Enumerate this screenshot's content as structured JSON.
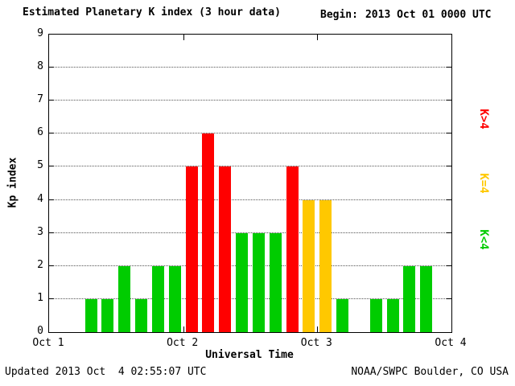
{
  "title": "Estimated Planetary K index (3 hour data)",
  "begin": {
    "label": "Begin:",
    "value": "2013 Oct 01 0000 UTC"
  },
  "footer": {
    "updated": "Updated 2013 Oct  4 02:55:07 UTC",
    "source": "NOAA/SWPC Boulder, CO USA"
  },
  "chart_data": {
    "type": "bar",
    "title": "Estimated Planetary K index (3 hour data)",
    "xlabel": "Universal Time",
    "ylabel": "Kp index",
    "ylim": [
      0,
      9
    ],
    "y_ticks": [
      0,
      1,
      2,
      3,
      4,
      5,
      6,
      7,
      8,
      9
    ],
    "x_tick_labels": [
      "Oct 1",
      "Oct 2",
      "Oct 3",
      "Oct 4"
    ],
    "bars_per_day": 8,
    "bar_interval_hours": 3,
    "values": [
      null,
      null,
      1,
      1,
      2,
      1,
      2,
      2,
      5,
      6,
      5,
      3,
      3,
      3,
      5,
      4,
      4,
      1,
      null,
      1,
      1,
      2,
      2,
      null
    ],
    "colors": {
      "kp_below_4": "#00cc00",
      "kp_equal_4": "#ffc800",
      "kp_above_4": "#ff0000"
    },
    "legend": [
      {
        "label": "K>4",
        "color": "#ff0000"
      },
      {
        "label": "K=4",
        "color": "#ffc800"
      },
      {
        "label": "K<4",
        "color": "#00cc00"
      }
    ],
    "grid": "horizontal dotted",
    "legend_position": "right"
  }
}
